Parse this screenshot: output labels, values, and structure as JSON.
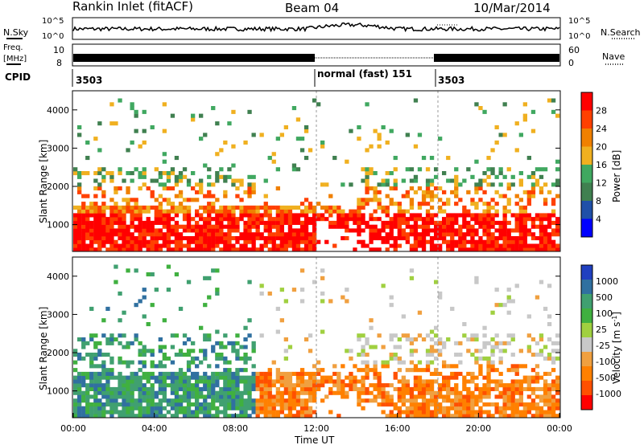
{
  "header": {
    "station": "Rankin Inlet (fitACF)",
    "beam": "Beam 04",
    "date": "10/Mar/2014"
  },
  "top_panels": {
    "nsky_label": "N.Sky",
    "nsearch_label": "N.Search",
    "noise_ticks": [
      "10^5",
      "10^0"
    ],
    "freq_label_1": "Freq.",
    "freq_label_2": "[MHz]",
    "freq_ticks": [
      "10",
      "8"
    ],
    "nave_label": "Nave",
    "nave_ticks": [
      "60",
      "0"
    ],
    "cpid_label": "CPID",
    "cpid_segments": [
      {
        "start_hr": 0,
        "label": "3503"
      },
      {
        "start_hr": 12,
        "label": "normal (fast)  151"
      },
      {
        "start_hr": 18,
        "label": "3503"
      }
    ]
  },
  "colors": {
    "power_scale": [
      "#0000ff",
      "#2050a8",
      "#408050",
      "#40a860",
      "#f0b020",
      "#f08000",
      "#ff4000",
      "#ff0000"
    ],
    "velocity_scale": [
      "#ff0000",
      "#ff5000",
      "#ff8000",
      "#f0a040",
      "#c8c8c8",
      "#a0d040",
      "#40b040",
      "#40a070",
      "#3070a0",
      "#2040c0"
    ]
  },
  "chart_data": [
    {
      "type": "heatmap",
      "name": "power",
      "xlabel": "",
      "ylabel": "Slant Range [km]",
      "xlim_hr": [
        0,
        24
      ],
      "ylim": [
        300,
        4500
      ],
      "yticks": [
        1000,
        2000,
        3000,
        4000
      ],
      "colorbar": {
        "label": "Power [dB]",
        "ticks": [
          "4",
          "8",
          "12",
          "16",
          "20",
          "24",
          "28"
        ],
        "range": [
          0,
          30
        ]
      }
    },
    {
      "type": "heatmap",
      "name": "velocity",
      "xlabel": "Time UT",
      "ylabel": "Slant Range [km]",
      "xlim_hr": [
        0,
        24
      ],
      "ylim": [
        300,
        4500
      ],
      "yticks": [
        1000,
        2000,
        3000,
        4000
      ],
      "xticks": [
        "00:00",
        "04:00",
        "08:00",
        "12:00",
        "16:00",
        "20:00",
        "00:00"
      ],
      "colorbar": {
        "label": "Velocity [m s",
        "label_sup": "-1",
        "label_end": "]",
        "ticks": [
          "1000",
          "500",
          "100",
          "25",
          "-25",
          "-100",
          "-500",
          "-1000"
        ]
      }
    }
  ]
}
